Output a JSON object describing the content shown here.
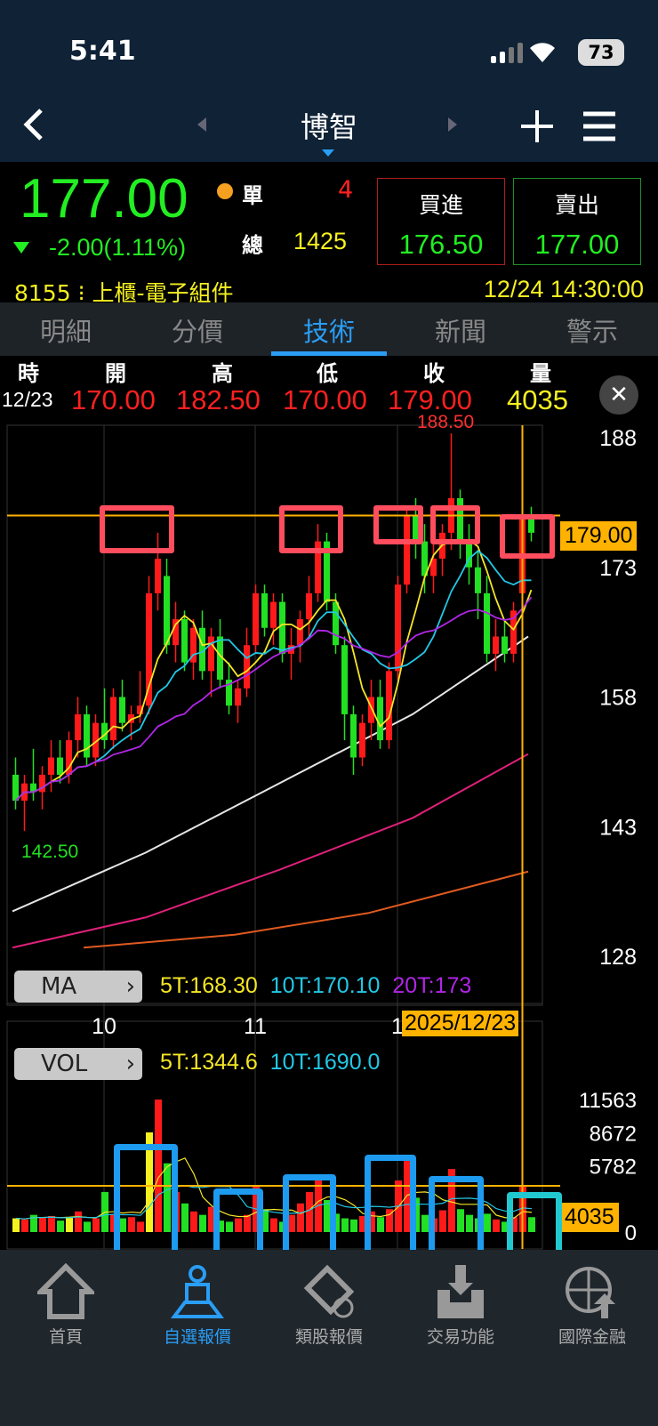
{
  "status": {
    "time": "5:41",
    "battery": "73"
  },
  "header": {
    "title": "博智",
    "back_icon": "chevron-left-icon",
    "add_icon": "plus-icon",
    "menu_icon": "hamburger-menu-icon"
  },
  "quote": {
    "price": "177.00",
    "change": "-2.00(1.11%)",
    "single_label": "單",
    "single_value": "4",
    "total_label": "總",
    "total_value": "1425",
    "buy_label": "買進",
    "buy_price": "176.50",
    "sell_label": "賣出",
    "sell_price": "177.00",
    "code": "8155",
    "market": "上櫃-電子組件",
    "datetime": "12/24 14:30:00"
  },
  "tabs": [
    {
      "label": "明細"
    },
    {
      "label": "分價"
    },
    {
      "label": "技術",
      "active": true
    },
    {
      "label": "新聞"
    },
    {
      "label": "警示"
    }
  ],
  "ohlc_bar": {
    "headers": [
      "時",
      "開",
      "高",
      "低",
      "收",
      "量"
    ],
    "date": "12/23",
    "open": "170.00",
    "high": "182.50",
    "low": "170.00",
    "close": "179.00",
    "volume": "4035"
  },
  "chart_data": {
    "type": "candlestick",
    "price_ticks": [
      188,
      173,
      158,
      143,
      128
    ],
    "ylim": [
      128,
      188
    ],
    "x_ticks": [
      "10",
      "11",
      "1"
    ],
    "x_tick_index": [
      10,
      27,
      43
    ],
    "high_label": "188.50",
    "low_label": "142.50",
    "crosshair_price": "179.00",
    "crosshair_date": "2025/12/23",
    "crosshair_index": 57,
    "candles": [
      [
        149,
        151,
        145,
        146
      ],
      [
        146,
        149,
        142.5,
        148
      ],
      [
        148,
        152,
        146,
        147
      ],
      [
        147,
        150,
        145,
        149
      ],
      [
        149,
        153,
        147,
        151
      ],
      [
        151,
        153,
        148,
        149
      ],
      [
        149,
        154,
        148,
        153
      ],
      [
        153,
        158,
        151,
        156
      ],
      [
        156,
        157,
        150,
        151
      ],
      [
        151,
        156,
        150,
        155
      ],
      [
        155,
        159,
        152,
        153
      ],
      [
        153,
        159,
        152,
        158
      ],
      [
        158,
        160,
        154,
        155
      ],
      [
        155,
        157,
        153,
        156
      ],
      [
        156,
        161,
        155,
        157
      ],
      [
        157,
        172,
        156,
        170
      ],
      [
        170,
        177,
        168,
        174
      ],
      [
        172,
        174,
        163,
        164
      ],
      [
        164,
        169,
        162,
        167
      ],
      [
        167,
        168,
        161,
        162
      ],
      [
        162,
        167,
        160,
        166
      ],
      [
        166,
        168,
        160,
        161
      ],
      [
        161,
        166,
        158,
        165
      ],
      [
        165,
        167,
        159,
        160
      ],
      [
        160,
        162,
        156,
        157
      ],
      [
        157,
        160,
        155,
        159
      ],
      [
        159,
        166,
        158,
        164
      ],
      [
        164,
        171,
        163,
        170
      ],
      [
        170,
        171,
        165,
        166
      ],
      [
        166,
        170,
        164,
        169
      ],
      [
        169,
        170,
        162,
        163
      ],
      [
        163,
        166,
        160,
        164
      ],
      [
        164,
        168,
        162,
        167
      ],
      [
        167,
        172,
        165,
        170
      ],
      [
        170,
        178,
        169,
        176
      ],
      [
        176,
        177,
        168,
        169
      ],
      [
        169,
        170,
        163,
        164
      ],
      [
        164,
        165,
        153,
        156
      ],
      [
        156,
        157,
        149,
        151
      ],
      [
        151,
        156,
        150,
        155
      ],
      [
        155,
        160,
        153,
        158
      ],
      [
        158,
        160,
        152,
        153
      ],
      [
        153,
        162,
        152,
        161
      ],
      [
        161,
        172,
        160,
        171
      ],
      [
        171,
        180,
        170,
        179
      ],
      [
        179,
        181,
        174,
        176
      ],
      [
        176,
        178,
        170,
        172
      ],
      [
        172,
        176,
        170,
        174
      ],
      [
        174,
        178,
        172,
        177
      ],
      [
        177,
        188.5,
        175,
        181
      ],
      [
        181,
        182,
        174,
        176
      ],
      [
        176,
        178,
        171,
        173
      ],
      [
        173,
        175,
        167,
        170
      ],
      [
        170,
        172,
        162,
        163
      ],
      [
        163,
        167,
        161,
        165
      ],
      [
        165,
        167,
        162,
        163
      ],
      [
        163,
        169,
        162,
        168
      ],
      [
        170,
        182.5,
        170,
        179
      ],
      [
        179,
        180,
        176,
        177
      ]
    ],
    "long_ma": [
      {
        "color": "#e6e6e6",
        "points": [
          [
            0,
            133.2
          ],
          [
            15,
            140
          ],
          [
            30,
            148
          ],
          [
            45,
            156
          ],
          [
            58,
            165
          ]
        ]
      },
      {
        "color": "#e0207a",
        "points": [
          [
            0,
            129
          ],
          [
            15,
            132.5
          ],
          [
            30,
            138
          ],
          [
            45,
            144
          ],
          [
            58,
            151.4
          ]
        ]
      },
      {
        "color": "#e05a20",
        "points": [
          [
            8,
            129
          ],
          [
            25,
            130.5
          ],
          [
            40,
            133
          ],
          [
            58,
            137.8
          ]
        ]
      }
    ],
    "ma": {
      "label": "MA",
      "ma5": "5T:168.30",
      "ma10": "10T:170.10",
      "ma20": "20T:173",
      "colors": {
        "ma5": "#f5e626",
        "ma10": "#22c8e6",
        "ma20": "#b026e6"
      }
    },
    "vol": {
      "label": "VOL",
      "ma5": "5T:1344.6",
      "ma10": "10T:1690.0",
      "ticks": [
        "11563",
        "8672",
        "5782",
        "0"
      ],
      "tick_values": [
        11563,
        8672,
        5782,
        0
      ],
      "crosshair": "4035",
      "max": 11563,
      "values": [
        1200,
        1100,
        1500,
        1300,
        1400,
        1000,
        1300,
        1800,
        900,
        1200,
        3500,
        1500,
        1200,
        1300,
        900,
        8700,
        11563,
        6000,
        3500,
        2500,
        1800,
        1500,
        2200,
        1000,
        900,
        1200,
        1500,
        4000,
        2000,
        1200,
        900,
        1500,
        2500,
        3500,
        5000,
        2800,
        1600,
        1200,
        1100,
        1400,
        1800,
        1300,
        2000,
        4500,
        6500,
        3000,
        1500,
        1200,
        1900,
        5500,
        2000,
        1500,
        1200,
        1600,
        1100,
        900,
        1300,
        4035,
        1300
      ],
      "yellow_index": [
        0,
        6,
        15
      ]
    }
  },
  "nav": [
    {
      "label": "首頁",
      "icon": "home-icon"
    },
    {
      "label": "自選報價",
      "icon": "watchlist-person-icon",
      "active": true
    },
    {
      "label": "類股報價",
      "icon": "film-coin-icon"
    },
    {
      "label": "交易功能",
      "icon": "download-tray-icon"
    },
    {
      "label": "國際金融",
      "icon": "globe-arrow-icon"
    }
  ]
}
